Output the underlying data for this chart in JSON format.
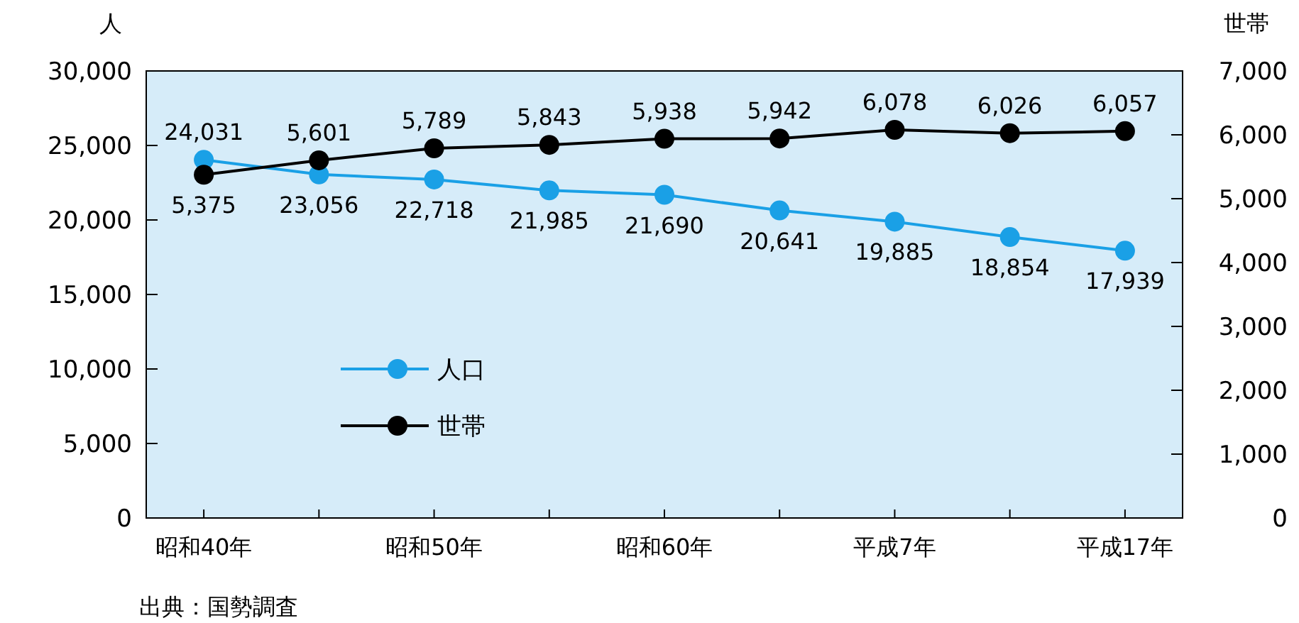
{
  "chart_data": {
    "type": "line",
    "ylabel": "人",
    "y2label": "世帯",
    "categories": [
      "昭和40年",
      null,
      "昭和50年",
      null,
      "昭和60年",
      null,
      "平成7年",
      null,
      "平成17年"
    ],
    "series": [
      {
        "name": "人口",
        "color": "#1aa0e6",
        "values": [
          24031,
          23056,
          22718,
          21985,
          21690,
          20641,
          19885,
          18854,
          17939
        ],
        "value_labels": [
          "24,031",
          "23,056",
          "22,718",
          "21,985",
          "21,690",
          "20,641",
          "19,885",
          "18,854",
          "17,939"
        ]
      },
      {
        "name": "世帯",
        "color": "#000000",
        "axis": "y2",
        "values": [
          5375,
          5601,
          5789,
          5843,
          5938,
          5942,
          6078,
          6026,
          6057
        ],
        "value_labels": [
          "5,375",
          "5,601",
          "5,789",
          "5,843",
          "5,938",
          "5,942",
          "6,078",
          "6,026",
          "6,057"
        ]
      }
    ],
    "ylim": [
      0,
      30000
    ],
    "yticks": [
      {
        "value": 0,
        "label": "0"
      },
      {
        "value": 5000,
        "label": "5,000"
      },
      {
        "value": 10000,
        "label": "10,000"
      },
      {
        "value": 15000,
        "label": "15,000"
      },
      {
        "value": 20000,
        "label": "20,000"
      },
      {
        "value": 25000,
        "label": "25,000"
      },
      {
        "value": 30000,
        "label": "30,000"
      }
    ],
    "y2lim": [
      0,
      7000
    ],
    "y2ticks": [
      {
        "value": 0,
        "label": "0"
      },
      {
        "value": 1000,
        "label": "1,000"
      },
      {
        "value": 2000,
        "label": "2,000"
      },
      {
        "value": 3000,
        "label": "3,000"
      },
      {
        "value": 4000,
        "label": "4,000"
      },
      {
        "value": 5000,
        "label": "5,000"
      },
      {
        "value": 6000,
        "label": "6,000"
      },
      {
        "value": 7000,
        "label": "7,000"
      }
    ],
    "marker": "circle",
    "legend": "left",
    "grid": false,
    "annotations": [
      "出典：国勢調査"
    ]
  }
}
